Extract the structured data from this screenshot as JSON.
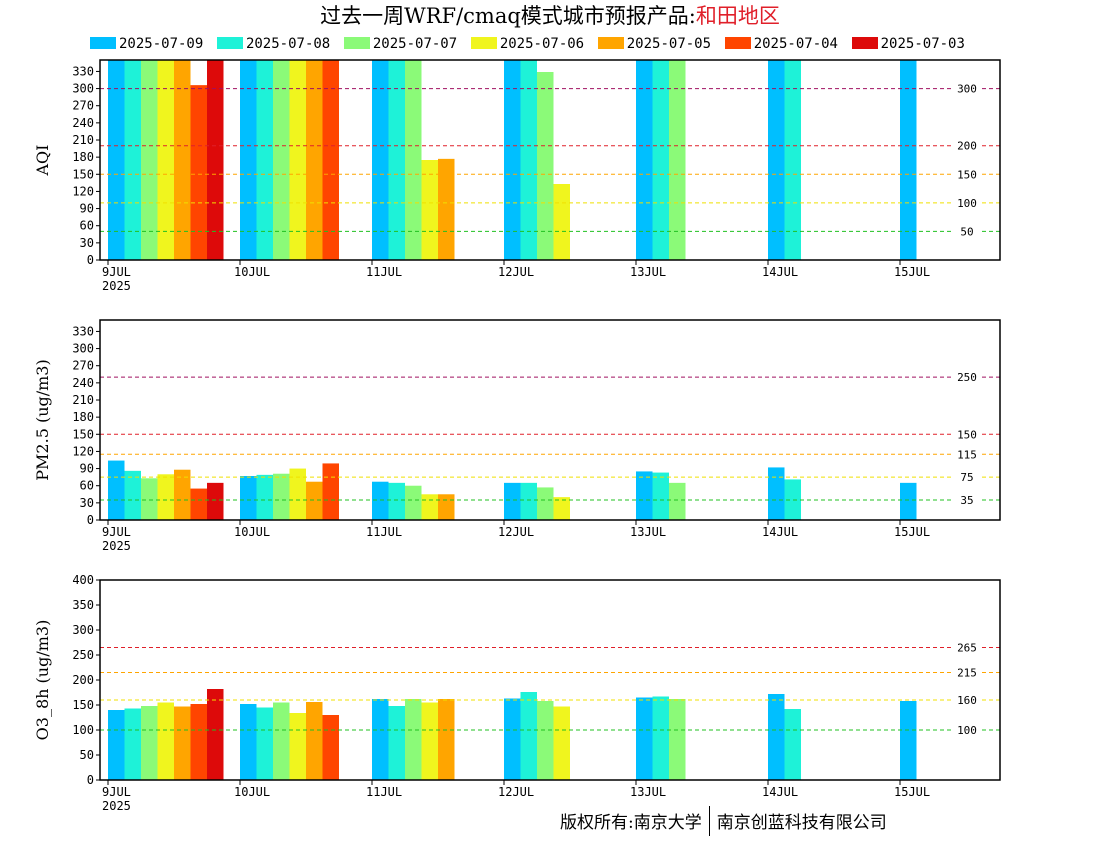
{
  "header": {
    "title_prefix": "过去一周WRF/cmaq模式城市预报产品:",
    "region": "和田地区"
  },
  "legend": [
    {
      "label": "2025-07-09",
      "color": "#00bfff"
    },
    {
      "label": "2025-07-08",
      "color": "#1ef2d8"
    },
    {
      "label": "2025-07-07",
      "color": "#8bfa78"
    },
    {
      "label": "2025-07-06",
      "color": "#f0f51e"
    },
    {
      "label": "2025-07-05",
      "color": "#ffa500"
    },
    {
      "label": "2025-07-04",
      "color": "#ff4500"
    },
    {
      "label": "2025-07-03",
      "color": "#dd0a0a"
    }
  ],
  "footer": {
    "left": "版权所有:南京大学",
    "right": "南京创蓝科技有限公司"
  },
  "chart_data": [
    {
      "type": "bar",
      "ylabel": "AQI",
      "ylim": [
        0,
        350
      ],
      "yticks": [
        0,
        30,
        60,
        90,
        120,
        150,
        180,
        210,
        240,
        270,
        300,
        330
      ],
      "categories": [
        "9JUL",
        "10JUL",
        "11JUL",
        "12JUL",
        "13JUL",
        "14JUL",
        "15JUL"
      ],
      "first_tick_sublabel": "2025",
      "series": [
        {
          "name": "2025-07-09",
          "values": [
            350,
            350,
            350,
            350,
            350,
            350,
            350
          ]
        },
        {
          "name": "2025-07-08",
          "values": [
            350,
            350,
            350,
            350,
            350,
            350,
            null
          ]
        },
        {
          "name": "2025-07-07",
          "values": [
            350,
            350,
            350,
            329,
            350,
            null,
            null
          ]
        },
        {
          "name": "2025-07-06",
          "values": [
            350,
            350,
            175,
            133,
            null,
            null,
            null
          ]
        },
        {
          "name": "2025-07-05",
          "values": [
            350,
            350,
            177,
            null,
            null,
            null,
            null
          ]
        },
        {
          "name": "2025-07-04",
          "values": [
            306,
            350,
            null,
            null,
            null,
            null,
            null
          ]
        },
        {
          "name": "2025-07-03",
          "values": [
            350,
            null,
            null,
            null,
            null,
            null,
            null
          ]
        }
      ],
      "reference_lines": [
        {
          "value": 300,
          "label": "300",
          "color": "#a01060"
        },
        {
          "value": 200,
          "label": "200",
          "color": "#e0202a"
        },
        {
          "value": 150,
          "label": "150",
          "color": "#ffa500"
        },
        {
          "value": 100,
          "label": "100",
          "color": "#f0e000"
        },
        {
          "value": 50,
          "label": "50",
          "color": "#20c020"
        }
      ]
    },
    {
      "type": "bar",
      "ylabel": "PM2.5 (ug/m3)",
      "ylim": [
        0,
        350
      ],
      "yticks": [
        0,
        30,
        60,
        90,
        120,
        150,
        180,
        210,
        240,
        270,
        300,
        330
      ],
      "categories": [
        "9JUL",
        "10JUL",
        "11JUL",
        "12JUL",
        "13JUL",
        "14JUL",
        "15JUL"
      ],
      "first_tick_sublabel": "2025",
      "series": [
        {
          "name": "2025-07-09",
          "values": [
            104,
            77,
            67,
            65,
            85,
            92,
            65
          ]
        },
        {
          "name": "2025-07-08",
          "values": [
            86,
            79,
            65,
            65,
            83,
            71,
            null
          ]
        },
        {
          "name": "2025-07-07",
          "values": [
            73,
            81,
            60,
            57,
            65,
            null,
            null
          ]
        },
        {
          "name": "2025-07-06",
          "values": [
            80,
            90,
            45,
            40,
            null,
            null,
            null
          ]
        },
        {
          "name": "2025-07-05",
          "values": [
            88,
            67,
            45,
            null,
            null,
            null,
            null
          ]
        },
        {
          "name": "2025-07-04",
          "values": [
            55,
            99,
            null,
            null,
            null,
            null,
            null
          ]
        },
        {
          "name": "2025-07-03",
          "values": [
            65,
            null,
            null,
            null,
            null,
            null,
            null
          ]
        }
      ],
      "reference_lines": [
        {
          "value": 250,
          "label": "250",
          "color": "#a01060"
        },
        {
          "value": 150,
          "label": "150",
          "color": "#e0202a"
        },
        {
          "value": 115,
          "label": "115",
          "color": "#ffa500"
        },
        {
          "value": 75,
          "label": "75",
          "color": "#f0e000"
        },
        {
          "value": 35,
          "label": "35",
          "color": "#20c020"
        }
      ]
    },
    {
      "type": "bar",
      "ylabel": "O3_8h (ug/m3)",
      "ylim": [
        0,
        400
      ],
      "yticks": [
        0,
        50,
        100,
        150,
        200,
        250,
        300,
        350,
        400
      ],
      "categories": [
        "9JUL",
        "10JUL",
        "11JUL",
        "12JUL",
        "13JUL",
        "14JUL",
        "15JUL"
      ],
      "first_tick_sublabel": "2025",
      "series": [
        {
          "name": "2025-07-09",
          "values": [
            140,
            152,
            162,
            163,
            165,
            172,
            158
          ]
        },
        {
          "name": "2025-07-08",
          "values": [
            143,
            145,
            148,
            176,
            167,
            142,
            null
          ]
        },
        {
          "name": "2025-07-07",
          "values": [
            148,
            155,
            162,
            158,
            162,
            null,
            null
          ]
        },
        {
          "name": "2025-07-06",
          "values": [
            155,
            134,
            155,
            147,
            null,
            null,
            null
          ]
        },
        {
          "name": "2025-07-05",
          "values": [
            147,
            156,
            162,
            null,
            null,
            null,
            null
          ]
        },
        {
          "name": "2025-07-04",
          "values": [
            152,
            130,
            null,
            null,
            null,
            null,
            null
          ]
        },
        {
          "name": "2025-07-03",
          "values": [
            182,
            null,
            null,
            null,
            null,
            null,
            null
          ]
        }
      ],
      "reference_lines": [
        {
          "value": 265,
          "label": "265",
          "color": "#e0202a"
        },
        {
          "value": 215,
          "label": "215",
          "color": "#ffa500"
        },
        {
          "value": 160,
          "label": "160",
          "color": "#f0e000"
        },
        {
          "value": 100,
          "label": "100",
          "color": "#20c020"
        }
      ]
    }
  ]
}
